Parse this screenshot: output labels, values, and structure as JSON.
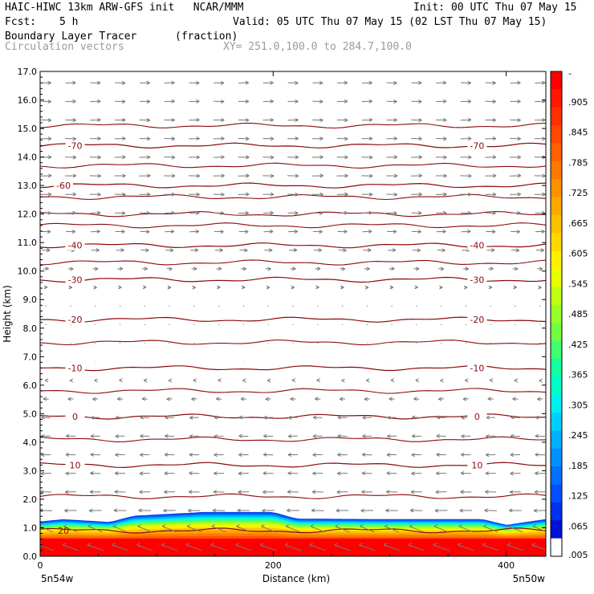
{
  "header": {
    "line1_left": "HAIC-HIWC 13km ARW-GFS init   NCAR/MMM",
    "init": "Init: 00 UTC Thu 07 May 15",
    "fcst_label": "Fcst:",
    "fcst_value": "5 h",
    "valid": "Valid: 05 UTC Thu 07 May 15 (02 LST Thu 07 May 15)",
    "field_name": "Boundary Layer Tracer",
    "field_units": "(fraction)",
    "overlay_name": "Circulation vectors",
    "xy_range": "XY= 251.0,100.0 to 284.7,100.0"
  },
  "chart_data": {
    "type": "heatmap",
    "xlabel": "Distance (km)",
    "ylabel": "Height (km)",
    "xlim": [
      0,
      434
    ],
    "ylim": [
      0,
      17
    ],
    "xticks": [
      "0",
      "200",
      "400"
    ],
    "yticks": [
      "0.0",
      "1.0",
      "2.0",
      "3.0",
      "4.0",
      "5.0",
      "6.0",
      "7.0",
      "8.0",
      "9.0",
      "10.0",
      "11.0",
      "12.0",
      "13.0",
      "14.0",
      "15.0",
      "16.0",
      "17.0"
    ],
    "x_end_labels": {
      "left": "5n54w",
      "right": "5n50w"
    },
    "colorbar": {
      "labels": [
        "-",
        ".905",
        ".845",
        ".785",
        ".725",
        ".665",
        ".605",
        ".545",
        ".485",
        ".425",
        ".365",
        ".305",
        ".245",
        ".185",
        ".125",
        ".065",
        ".005"
      ],
      "colors": [
        "#ff0000",
        "#ff1800",
        "#ff3000",
        "#ff4800",
        "#ff6000",
        "#ff7800",
        "#ff9000",
        "#ffa800",
        "#ffc000",
        "#ffd800",
        "#fff000",
        "#e8ff00",
        "#c0ff10",
        "#98ff28",
        "#70ff40",
        "#40ff70",
        "#10ffa0",
        "#00ffc8",
        "#00f0f0",
        "#00d0ff",
        "#00b0ff",
        "#0090ff",
        "#0070ff",
        "#0050ff",
        "#0030f0",
        "#0010d8",
        "#ffffff"
      ]
    },
    "tracer_field": {
      "top_km_by_x": [
        [
          0,
          1.22
        ],
        [
          20,
          1.3
        ],
        [
          60,
          1.2
        ],
        [
          80,
          1.42
        ],
        [
          140,
          1.55
        ],
        [
          200,
          1.55
        ],
        [
          220,
          1.32
        ],
        [
          300,
          1.3
        ],
        [
          380,
          1.3
        ],
        [
          400,
          1.1
        ],
        [
          434,
          1.3
        ]
      ]
    },
    "temperature_contours": [
      {
        "label": "20",
        "km": 0.9,
        "labeled": [
          "20"
        ]
      },
      {
        "label": "10",
        "km": 3.2,
        "labeled": [
          "10",
          "10"
        ]
      },
      {
        "label": "0",
        "km": 4.9,
        "labeled": [
          "0",
          "0"
        ]
      },
      {
        "label": "-10",
        "km": 6.6,
        "labeled": [
          "-10",
          "-10"
        ]
      },
      {
        "label": "-20",
        "km": 8.3,
        "labeled": [
          "-20",
          "-20"
        ]
      },
      {
        "label": "-30",
        "km": 9.7,
        "labeled": [
          "-30",
          "-30"
        ]
      },
      {
        "label": "-40",
        "km": 10.9,
        "labeled": [
          "-40",
          "-40"
        ]
      },
      {
        "label": "-60",
        "km": 13.0,
        "labeled": [
          "-60"
        ]
      },
      {
        "label": "-70",
        "km": 14.4,
        "labeled": [
          "-70",
          "-70"
        ]
      }
    ],
    "unlabeled_contour_km": [
      2.1,
      4.1,
      5.8,
      7.5,
      10.3,
      11.6,
      12.0,
      12.6,
      13.7,
      15.1
    ],
    "vectors": {
      "nx": 21,
      "ny": 26,
      "u_profile_km": [
        [
          0,
          -1.5
        ],
        [
          2,
          -1
        ],
        [
          3,
          -0.9
        ],
        [
          5,
          -0.8
        ],
        [
          6,
          -0.2
        ],
        [
          7,
          0.05
        ],
        [
          9,
          0.1
        ],
        [
          11,
          0.8
        ],
        [
          13,
          1
        ],
        [
          17,
          0.9
        ]
      ]
    }
  }
}
